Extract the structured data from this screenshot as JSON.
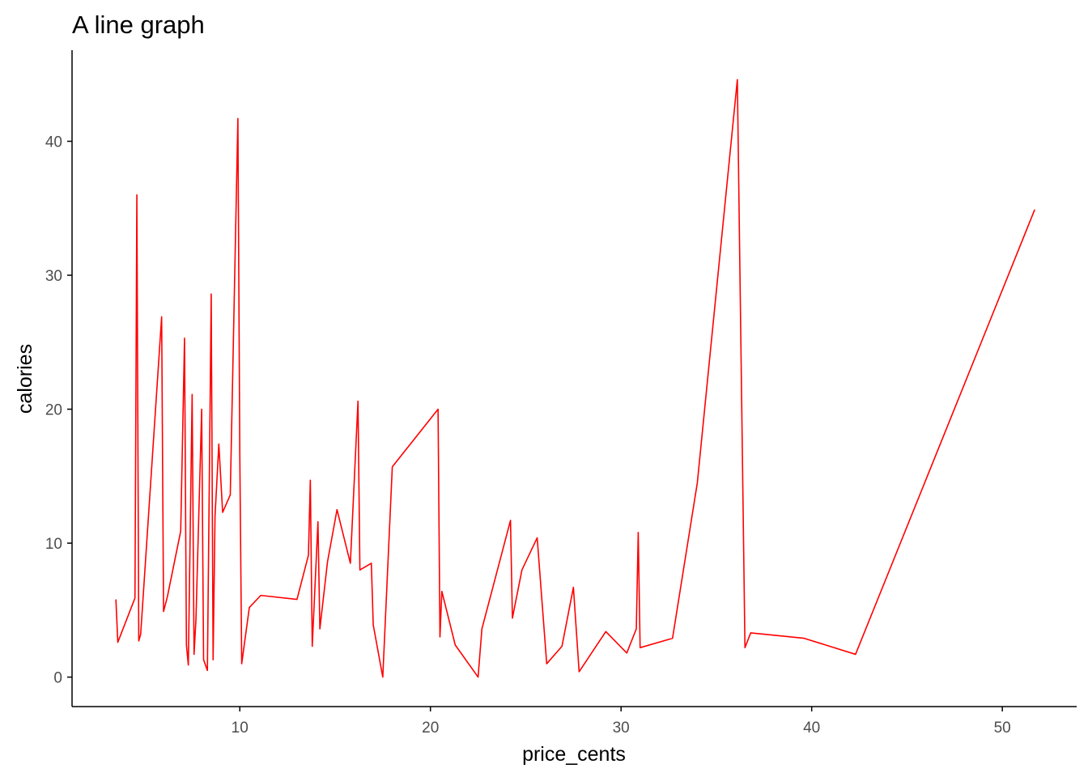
{
  "chart_data": {
    "type": "line",
    "title": "A line graph",
    "xlabel": "price_cents",
    "ylabel": "calories",
    "xlim": [
      1.2,
      53.9
    ],
    "ylim": [
      -2.2,
      46.8
    ],
    "x_ticks": [
      10,
      20,
      30,
      40,
      50
    ],
    "x_tick_labels": [
      "10",
      "20",
      "30",
      "40",
      "50"
    ],
    "y_ticks": [
      0,
      10,
      20,
      30,
      40
    ],
    "y_tick_labels": [
      "0",
      "10",
      "20",
      "30",
      "40"
    ],
    "grid": false,
    "line_color": "#ff0000",
    "series": [
      {
        "x": [
          3.5,
          3.6,
          4.5,
          4.6,
          4.7,
          4.8,
          5.9,
          6.0,
          6.2,
          6.9,
          7.1,
          7.2,
          7.3,
          7.5,
          7.6,
          7.7,
          8.0,
          8.1,
          8.3,
          8.5,
          8.6,
          8.7,
          8.9,
          9.1,
          9.5,
          9.9,
          10.0,
          10.1,
          10.5,
          11.1,
          13.0,
          13.6,
          13.7,
          13.8,
          14.1,
          14.2,
          14.6,
          15.1,
          15.8,
          16.2,
          16.3,
          16.9,
          17.0,
          17.5,
          18.0,
          20.4,
          20.5,
          20.6,
          21.3,
          22.5,
          22.7,
          24.2,
          24.3,
          24.8,
          25.6,
          26.1,
          26.9,
          27.5,
          27.8,
          29.2,
          30.3,
          30.8,
          30.9,
          31.0,
          32.7,
          34.0,
          36.1,
          36.5,
          36.8,
          39.6,
          42.3,
          51.7
        ],
        "y": [
          5.8,
          2.6,
          5.9,
          36.0,
          2.7,
          3.2,
          26.9,
          4.9,
          6.0,
          10.9,
          25.3,
          2.4,
          0.9,
          21.1,
          1.7,
          4.3,
          20.0,
          1.3,
          0.5,
          28.6,
          1.3,
          12.0,
          17.4,
          12.3,
          13.6,
          41.7,
          16.6,
          1.0,
          5.2,
          6.1,
          5.8,
          9.1,
          14.7,
          2.3,
          11.6,
          3.6,
          8.6,
          12.5,
          8.5,
          20.6,
          8.0,
          8.5,
          3.9,
          0.0,
          15.7,
          20.0,
          3.0,
          6.4,
          2.4,
          0.0,
          3.6,
          11.7,
          4.4,
          8.0,
          10.4,
          1.0,
          2.3,
          6.7,
          0.4,
          3.4,
          1.8,
          3.6,
          10.8,
          2.2,
          2.9,
          14.5,
          44.6,
          2.2,
          3.3,
          2.9,
          1.7,
          34.9
        ]
      }
    ]
  }
}
